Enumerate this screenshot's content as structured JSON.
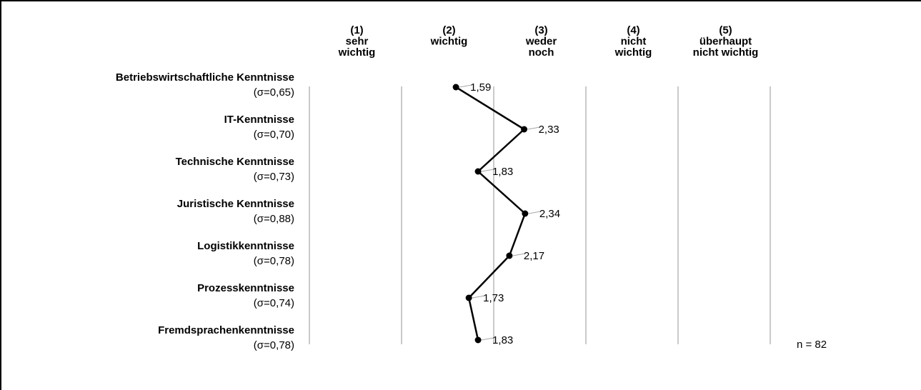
{
  "chart_data": {
    "type": "line",
    "orientation": "vertical-profile",
    "scale_columns": [
      {
        "lines": [
          "(1)",
          "sehr",
          "wichtig"
        ]
      },
      {
        "lines": [
          "(2)",
          "wichtig"
        ]
      },
      {
        "lines": [
          "(3)",
          "weder",
          "noch"
        ]
      },
      {
        "lines": [
          "(4)",
          "nicht",
          "wichtig"
        ]
      },
      {
        "lines": [
          "(5)",
          "überhaupt",
          "nicht wichtig"
        ]
      }
    ],
    "xlim": [
      0,
      5
    ],
    "categories": [
      {
        "name": "Betriebswirtschaftliche Kenntnisse",
        "sigma": "(σ=0,65)"
      },
      {
        "name": "IT-Kenntnisse",
        "sigma": "(σ=0,70)"
      },
      {
        "name": "Technische Kenntnisse",
        "sigma": "(σ=0,73)"
      },
      {
        "name": "Juristische Kenntnisse",
        "sigma": "(σ=0,88)"
      },
      {
        "name": "Logistikkenntnisse",
        "sigma": "(σ=0,78)"
      },
      {
        "name": "Prozesskenntnisse",
        "sigma": "(σ=0,74)"
      },
      {
        "name": "Fremdsprachenkenntnisse",
        "sigma": "(σ=0,78)"
      }
    ],
    "values": [
      1.59,
      2.33,
      1.83,
      2.34,
      2.17,
      1.73,
      1.83
    ],
    "value_labels": [
      "1,59",
      "2,33",
      "1,83",
      "2,34",
      "2,17",
      "1,73",
      "1,83"
    ],
    "note": "n = 82",
    "grid": true,
    "colors": {
      "line": "#000000",
      "grid": "#a6a6a6"
    }
  }
}
